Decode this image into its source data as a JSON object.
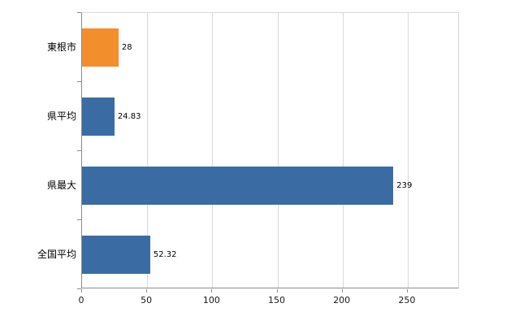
{
  "chart_data": {
    "type": "bar",
    "orientation": "horizontal",
    "title": "",
    "xlabel": "",
    "ylabel": "",
    "categories": [
      "東根市",
      "県平均",
      "県最大",
      "全国平均"
    ],
    "values": [
      28,
      24.83,
      239,
      52.32
    ],
    "value_labels": [
      "28",
      "24.83",
      "239",
      "52.32"
    ],
    "bar_colors": [
      "#f28e2c",
      "#3a6ca3",
      "#3a6ca3",
      "#3a6ca3"
    ],
    "xlim": [
      0,
      290
    ],
    "xticks": [
      0,
      50,
      100,
      150,
      200,
      250
    ],
    "grid": true,
    "legend": false
  },
  "colors": {
    "highlight_bar": "#f28e2c",
    "default_bar": "#3a6ca3",
    "gridline": "#d9d9d9",
    "axis": "#8c8c8c",
    "background": "#ffffff",
    "text": "#000000"
  }
}
